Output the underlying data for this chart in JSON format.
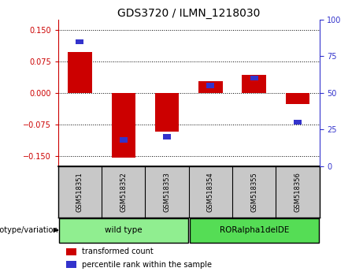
{
  "title": "GDS3720 / ILMN_1218030",
  "samples": [
    "GSM518351",
    "GSM518352",
    "GSM518353",
    "GSM518354",
    "GSM518355",
    "GSM518356"
  ],
  "group_spans": [
    {
      "start": 0,
      "end": 2,
      "label": "wild type",
      "color": "#90EE90"
    },
    {
      "start": 3,
      "end": 5,
      "label": "RORalpha1delDE",
      "color": "#55DD55"
    }
  ],
  "red_values": [
    0.098,
    -0.155,
    -0.093,
    0.027,
    0.042,
    -0.026
  ],
  "blue_values_pct": [
    85,
    18,
    20,
    55,
    60,
    30
  ],
  "ylim_left": [
    -0.175,
    0.175
  ],
  "ylim_right": [
    0,
    100
  ],
  "yticks_left": [
    -0.15,
    -0.075,
    0,
    0.075,
    0.15
  ],
  "yticks_right": [
    0,
    25,
    50,
    75,
    100
  ],
  "red_color": "#CC0000",
  "blue_color": "#3333CC",
  "background_color": "#ffffff",
  "legend_red": "transformed count",
  "legend_blue": "percentile rank within the sample",
  "header_bg": "#c8c8c8",
  "genotype_label": "genotype/variation"
}
